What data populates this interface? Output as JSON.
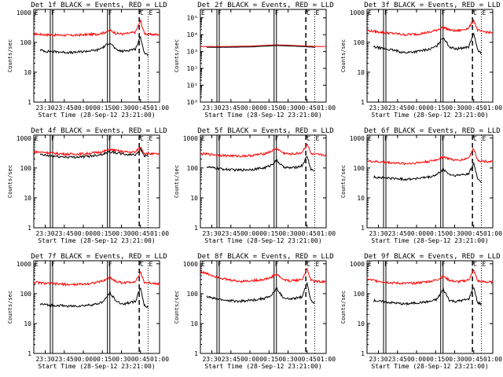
{
  "colors": {
    "events": "#000000",
    "lld": "#ff0000",
    "axis": "#000000"
  },
  "shared": {
    "xlabel": "Start Time (28-Sep-12 23:21:00)",
    "ylabel": "Counts/sec",
    "x_ticks": [
      "23:30",
      "23:45",
      "00:00",
      "00:15",
      "00:30",
      "00:45",
      "01:00"
    ],
    "xlim_minutes_after_start": [
      0,
      99
    ],
    "attenuator_markers": [
      {
        "label": "F",
        "t": 13,
        "type": "solid"
      },
      {
        "label": "F",
        "t": 58,
        "type": "solid"
      },
      {
        "label": "E",
        "t": 0,
        "type": "dotted"
      },
      {
        "label": "E",
        "t": 90,
        "type": "dotted"
      },
      {
        "label": "C",
        "t": 83,
        "type": "dashed"
      }
    ]
  },
  "chart_data": [
    {
      "type": "line",
      "title": "Det 1f BLACK = Events, RED = LLD",
      "yticks": [
        "1",
        "10",
        "100",
        "1000"
      ],
      "ylim_log10": [
        0,
        3.1
      ],
      "series": [
        {
          "name": "LLD",
          "x": [
            0,
            10,
            20,
            30,
            40,
            50,
            55,
            60,
            65,
            70,
            75,
            80,
            84,
            87,
            90,
            99
          ],
          "values": [
            190,
            180,
            175,
            170,
            180,
            190,
            210,
            250,
            200,
            190,
            200,
            220,
            520,
            200,
            185,
            180
          ]
        },
        {
          "name": "Events",
          "x": [
            5,
            10,
            20,
            30,
            40,
            50,
            55,
            60,
            65,
            70,
            75,
            80,
            84,
            87,
            90
          ],
          "values": [
            55,
            50,
            48,
            45,
            50,
            55,
            70,
            100,
            55,
            50,
            55,
            60,
            150,
            45,
            35
          ]
        }
      ]
    },
    {
      "type": "line",
      "title": "Det 2f BLACK = Events, RED = LLD",
      "yticks": [
        "10⁰",
        "10¹",
        "10²",
        "10³",
        "10⁴",
        "10⁵"
      ],
      "ylim_log10": [
        0,
        5.5
      ],
      "series": [
        {
          "name": "LLD",
          "x": [
            0,
            20,
            40,
            60,
            80,
            90,
            99
          ],
          "values": [
            2000,
            2000,
            2100,
            2500,
            2200,
            2000,
            2000
          ]
        },
        {
          "name": "Events",
          "x": [
            5,
            20,
            40,
            60,
            80,
            90
          ],
          "values": [
            1800,
            1800,
            1900,
            2300,
            2000,
            1800
          ]
        }
      ]
    },
    {
      "type": "line",
      "title": "Det 3f BLACK = Events, RED = LLD",
      "yticks": [
        "1",
        "10",
        "100",
        "1000"
      ],
      "ylim_log10": [
        0,
        3.1
      ],
      "series": [
        {
          "name": "LLD",
          "x": [
            0,
            10,
            20,
            30,
            40,
            50,
            55,
            60,
            65,
            70,
            75,
            80,
            84,
            87,
            90,
            99
          ],
          "values": [
            250,
            220,
            200,
            180,
            190,
            220,
            260,
            320,
            260,
            240,
            260,
            300,
            550,
            260,
            230,
            210
          ]
        },
        {
          "name": "Events",
          "x": [
            5,
            10,
            20,
            30,
            40,
            50,
            55,
            60,
            65,
            70,
            75,
            80,
            84,
            87,
            90
          ],
          "values": [
            70,
            65,
            55,
            45,
            50,
            60,
            75,
            150,
            70,
            60,
            65,
            70,
            200,
            55,
            45
          ]
        }
      ]
    },
    {
      "type": "line",
      "title": "Det 4f BLACK = Events, RED = LLD",
      "yticks": [
        "1",
        "10",
        "100",
        "1000"
      ],
      "ylim_log10": [
        0,
        3.1
      ],
      "series": [
        {
          "name": "LLD",
          "x": [
            0,
            10,
            20,
            30,
            40,
            50,
            55,
            60,
            65,
            70,
            75,
            80,
            84,
            87,
            90,
            99
          ],
          "values": [
            350,
            330,
            300,
            290,
            300,
            330,
            360,
            420,
            380,
            350,
            340,
            340,
            500,
            320,
            300,
            290
          ]
        },
        {
          "name": "Events",
          "x": [
            5,
            10,
            20,
            30,
            40,
            50,
            55,
            60,
            65,
            70,
            75,
            80,
            84,
            87,
            90
          ],
          "values": [
            280,
            260,
            240,
            230,
            240,
            270,
            300,
            350,
            320,
            290,
            280,
            280,
            420,
            260,
            250
          ]
        }
      ]
    },
    {
      "type": "line",
      "title": "Det 5f BLACK = Events, RED = LLD",
      "yticks": [
        "1",
        "10",
        "100",
        "1000"
      ],
      "ylim_log10": [
        0,
        3.1
      ],
      "series": [
        {
          "name": "LLD",
          "x": [
            0,
            10,
            20,
            30,
            40,
            50,
            55,
            60,
            65,
            70,
            75,
            80,
            84,
            87,
            90,
            99
          ],
          "values": [
            300,
            280,
            260,
            250,
            260,
            300,
            350,
            450,
            320,
            290,
            300,
            330,
            650,
            300,
            280,
            270
          ]
        },
        {
          "name": "Events",
          "x": [
            5,
            10,
            20,
            30,
            40,
            50,
            55,
            60,
            65,
            70,
            75,
            80,
            84,
            87,
            90
          ],
          "values": [
            110,
            100,
            90,
            85,
            90,
            100,
            120,
            180,
            110,
            100,
            105,
            120,
            250,
            90,
            80
          ]
        }
      ]
    },
    {
      "type": "line",
      "title": "Det 6f BLACK = Events, RED = LLD",
      "yticks": [
        "1",
        "10",
        "100",
        "1000"
      ],
      "ylim_log10": [
        0,
        3.1
      ],
      "series": [
        {
          "name": "LLD",
          "x": [
            0,
            10,
            20,
            30,
            40,
            50,
            55,
            60,
            65,
            70,
            75,
            80,
            84,
            87,
            90,
            99
          ],
          "values": [
            170,
            160,
            150,
            140,
            150,
            170,
            190,
            240,
            200,
            180,
            190,
            220,
            450,
            190,
            170,
            165
          ]
        },
        {
          "name": "Events",
          "x": [
            5,
            10,
            20,
            30,
            40,
            50,
            55,
            60,
            65,
            70,
            75,
            80,
            84,
            87,
            90
          ],
          "values": [
            50,
            48,
            45,
            42,
            45,
            50,
            60,
            90,
            60,
            55,
            60,
            65,
            140,
            45,
            35
          ]
        }
      ]
    },
    {
      "type": "line",
      "title": "Det 7f BLACK = Events, RED = LLD",
      "yticks": [
        "1",
        "10",
        "100",
        "1000"
      ],
      "ylim_log10": [
        0,
        3.1
      ],
      "series": [
        {
          "name": "LLD",
          "x": [
            0,
            10,
            20,
            30,
            40,
            50,
            55,
            60,
            65,
            70,
            75,
            80,
            84,
            87,
            90,
            99
          ],
          "values": [
            240,
            220,
            210,
            200,
            210,
            240,
            270,
            350,
            250,
            230,
            240,
            260,
            500,
            240,
            230,
            220
          ]
        },
        {
          "name": "Events",
          "x": [
            5,
            10,
            20,
            30,
            40,
            50,
            55,
            60,
            65,
            70,
            75,
            80,
            84,
            87,
            90
          ],
          "values": [
            45,
            42,
            40,
            38,
            40,
            45,
            55,
            110,
            55,
            45,
            50,
            55,
            160,
            40,
            35
          ]
        }
      ]
    },
    {
      "type": "line",
      "title": "Det 8f BLACK = Events, RED = LLD",
      "yticks": [
        "1",
        "10",
        "100",
        "1000"
      ],
      "ylim_log10": [
        0,
        3.1
      ],
      "series": [
        {
          "name": "LLD",
          "x": [
            0,
            10,
            20,
            30,
            40,
            50,
            55,
            60,
            65,
            70,
            75,
            80,
            84,
            87,
            90,
            99
          ],
          "values": [
            550,
            400,
            300,
            260,
            270,
            300,
            340,
            450,
            300,
            270,
            280,
            300,
            650,
            280,
            260,
            250
          ]
        },
        {
          "name": "Events",
          "x": [
            5,
            10,
            20,
            30,
            40,
            50,
            55,
            60,
            65,
            70,
            75,
            80,
            84,
            87,
            90
          ],
          "values": [
            80,
            70,
            60,
            55,
            60,
            70,
            80,
            150,
            75,
            65,
            70,
            80,
            220,
            60,
            50
          ]
        }
      ]
    },
    {
      "type": "line",
      "title": "Det 9f BLACK = Events, RED = LLD",
      "yticks": [
        "1",
        "10",
        "100",
        "1000"
      ],
      "ylim_log10": [
        0,
        3.1
      ],
      "series": [
        {
          "name": "LLD",
          "x": [
            0,
            10,
            20,
            30,
            40,
            50,
            55,
            60,
            65,
            70,
            75,
            80,
            84,
            87,
            90,
            99
          ],
          "values": [
            300,
            260,
            230,
            220,
            230,
            260,
            290,
            380,
            280,
            250,
            260,
            290,
            600,
            270,
            250,
            240
          ]
        },
        {
          "name": "Events",
          "x": [
            5,
            10,
            20,
            30,
            40,
            50,
            55,
            60,
            65,
            70,
            75,
            80,
            84,
            87,
            90
          ],
          "values": [
            60,
            55,
            50,
            45,
            50,
            55,
            65,
            140,
            60,
            55,
            60,
            65,
            170,
            50,
            45
          ]
        }
      ]
    }
  ]
}
